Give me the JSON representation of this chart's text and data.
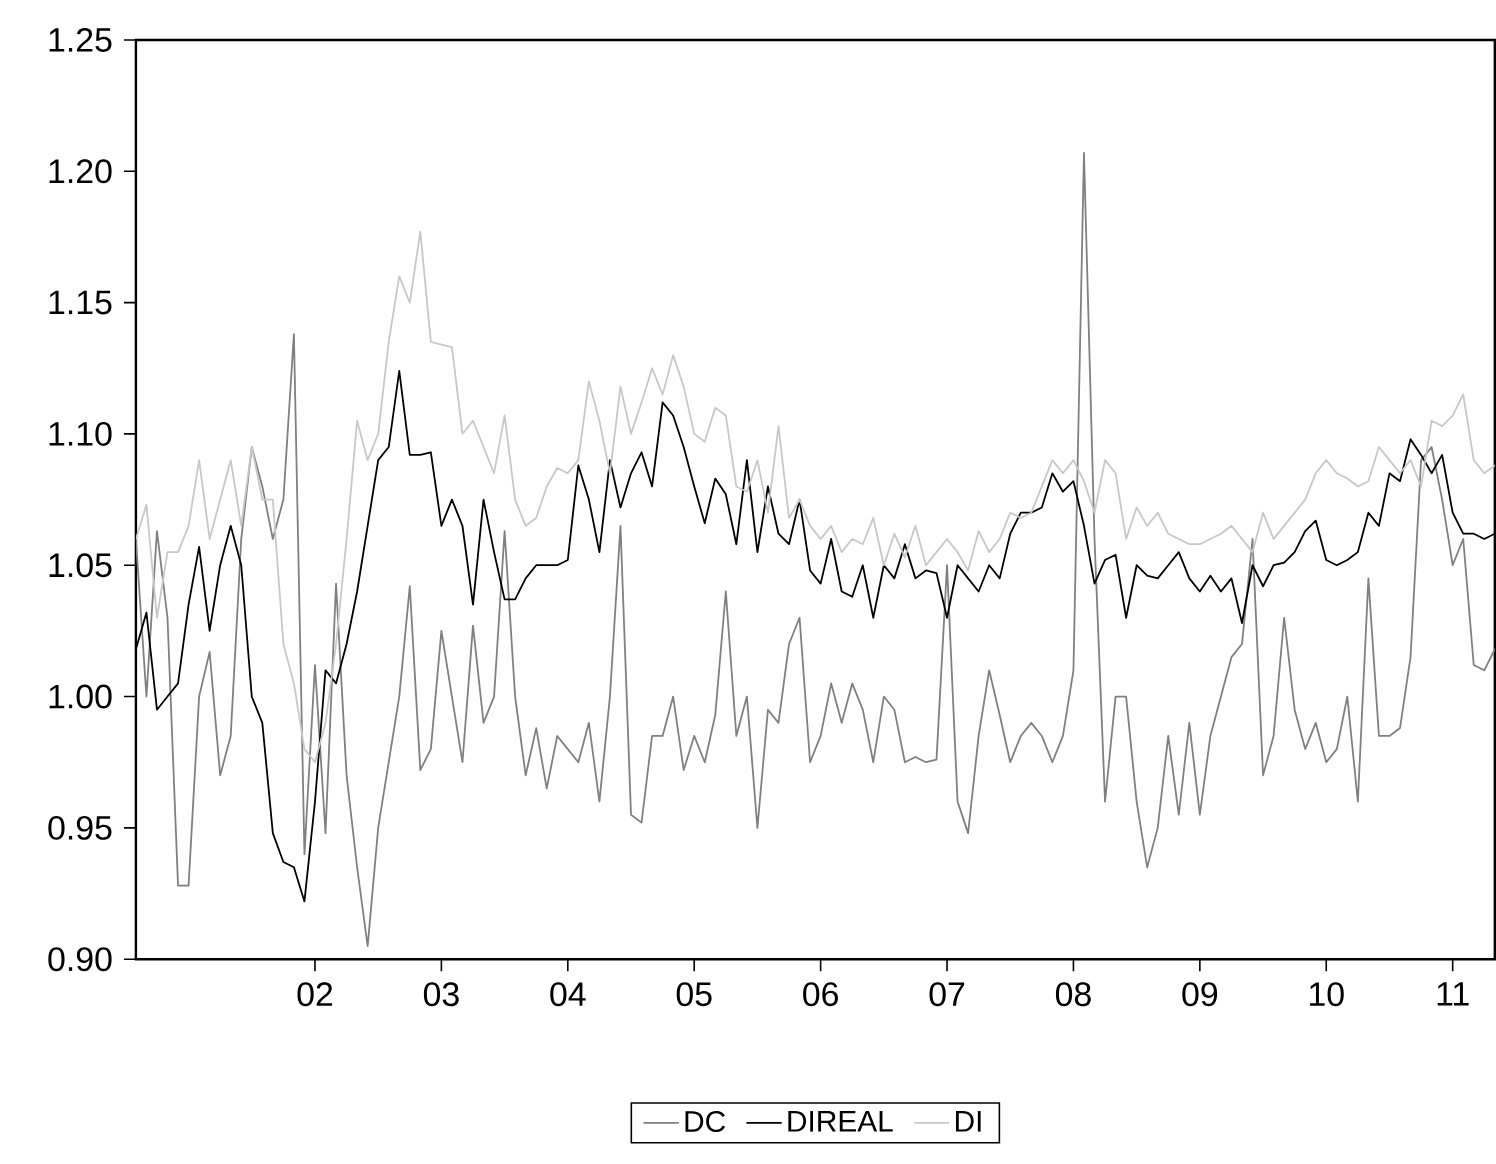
{
  "chart_data": {
    "type": "line",
    "x": [
      "2001-02",
      "2001-03",
      "2001-04",
      "2001-05",
      "2001-06",
      "2001-07",
      "2001-08",
      "2001-09",
      "2001-10",
      "2001-11",
      "2001-12",
      "2002-01",
      "2002-02",
      "2002-03",
      "2002-04",
      "2002-05",
      "2002-06",
      "2002-07",
      "2002-08",
      "2002-09",
      "2002-10",
      "2002-11",
      "2002-12",
      "2003-01",
      "2003-02",
      "2003-03",
      "2003-04",
      "2003-05",
      "2003-06",
      "2003-07",
      "2003-08",
      "2003-09",
      "2003-10",
      "2003-11",
      "2003-12",
      "2004-01",
      "2004-02",
      "2004-03",
      "2004-04",
      "2004-05",
      "2004-06",
      "2004-07",
      "2004-08",
      "2004-09",
      "2004-10",
      "2004-11",
      "2004-12",
      "2005-01",
      "2005-02",
      "2005-03",
      "2005-04",
      "2005-05",
      "2005-06",
      "2005-07",
      "2005-08",
      "2005-09",
      "2005-10",
      "2005-11",
      "2005-12",
      "2006-01",
      "2006-02",
      "2006-03",
      "2006-04",
      "2006-05",
      "2006-06",
      "2006-07",
      "2006-08",
      "2006-09",
      "2006-10",
      "2006-11",
      "2006-12",
      "2007-01",
      "2007-02",
      "2007-03",
      "2007-04",
      "2007-05",
      "2007-06",
      "2007-07",
      "2007-08",
      "2007-09",
      "2007-10",
      "2007-11",
      "2007-12",
      "2008-01",
      "2008-02",
      "2008-03",
      "2008-04",
      "2008-05",
      "2008-06",
      "2008-07",
      "2008-08",
      "2008-09",
      "2008-10",
      "2008-11",
      "2008-12",
      "2009-01",
      "2009-02",
      "2009-03",
      "2009-04",
      "2009-05",
      "2009-06",
      "2009-07",
      "2009-08",
      "2009-09",
      "2009-10",
      "2009-11",
      "2009-12",
      "2010-01",
      "2010-02",
      "2010-03",
      "2010-04",
      "2010-05",
      "2010-06",
      "2010-07",
      "2010-08",
      "2010-09",
      "2010-10",
      "2010-11",
      "2010-12",
      "2011-01",
      "2011-02",
      "2011-03",
      "2011-04",
      "2011-05",
      "2011-06",
      "2011-07",
      "2011-08",
      "2011-09",
      "2011-10",
      "2011-11"
    ],
    "series": [
      {
        "name": "DC",
        "color": "#808080",
        "values": [
          1.06,
          1.0,
          1.063,
          1.03,
          0.928,
          0.928,
          1.0,
          1.017,
          0.97,
          0.985,
          1.06,
          1.095,
          1.08,
          1.06,
          1.075,
          1.138,
          0.94,
          1.012,
          0.948,
          1.043,
          0.97,
          0.935,
          0.905,
          0.95,
          0.975,
          1.0,
          1.042,
          0.972,
          0.98,
          1.025,
          1.0,
          0.975,
          1.027,
          0.99,
          1.0,
          1.063,
          1.0,
          0.97,
          0.988,
          0.965,
          0.985,
          0.98,
          0.975,
          0.99,
          0.96,
          1.0,
          1.065,
          0.955,
          0.952,
          0.985,
          0.985,
          1.0,
          0.972,
          0.985,
          0.975,
          0.993,
          1.04,
          0.985,
          1.0,
          0.95,
          0.995,
          0.99,
          1.02,
          1.03,
          0.975,
          0.985,
          1.005,
          0.99,
          1.005,
          0.995,
          0.975,
          1.0,
          0.995,
          0.975,
          0.977,
          0.975,
          0.976,
          1.05,
          0.96,
          0.948,
          0.985,
          1.01,
          0.993,
          0.975,
          0.985,
          0.99,
          0.985,
          0.975,
          0.985,
          1.01,
          1.207,
          1.06,
          0.96,
          1.0,
          1.0,
          0.96,
          0.935,
          0.95,
          0.985,
          0.955,
          0.99,
          0.955,
          0.985,
          1.0,
          1.015,
          1.02,
          1.06,
          0.97,
          0.985,
          1.03,
          0.995,
          0.98,
          0.99,
          0.975,
          0.98,
          1.0,
          0.96,
          1.045,
          0.985,
          0.985,
          0.988,
          1.015,
          1.09,
          1.095,
          1.075,
          1.05,
          1.06,
          1.012,
          1.01,
          1.018
        ]
      },
      {
        "name": "DIREAL",
        "color": "#000000",
        "values": [
          1.018,
          1.032,
          0.995,
          1.0,
          1.005,
          1.035,
          1.057,
          1.025,
          1.05,
          1.065,
          1.05,
          1.0,
          0.99,
          0.948,
          0.937,
          0.935,
          0.922,
          0.96,
          1.01,
          1.005,
          1.02,
          1.04,
          1.065,
          1.09,
          1.095,
          1.124,
          1.092,
          1.092,
          1.093,
          1.065,
          1.075,
          1.065,
          1.035,
          1.075,
          1.055,
          1.037,
          1.037,
          1.045,
          1.05,
          1.05,
          1.05,
          1.052,
          1.088,
          1.075,
          1.055,
          1.09,
          1.072,
          1.085,
          1.093,
          1.08,
          1.112,
          1.107,
          1.095,
          1.08,
          1.066,
          1.083,
          1.077,
          1.058,
          1.09,
          1.055,
          1.08,
          1.062,
          1.058,
          1.075,
          1.048,
          1.043,
          1.06,
          1.04,
          1.038,
          1.05,
          1.03,
          1.05,
          1.045,
          1.058,
          1.045,
          1.048,
          1.047,
          1.03,
          1.05,
          1.045,
          1.04,
          1.05,
          1.045,
          1.062,
          1.07,
          1.07,
          1.072,
          1.085,
          1.078,
          1.082,
          1.065,
          1.043,
          1.052,
          1.054,
          1.03,
          1.05,
          1.046,
          1.045,
          1.05,
          1.055,
          1.045,
          1.04,
          1.046,
          1.04,
          1.045,
          1.028,
          1.05,
          1.042,
          1.05,
          1.051,
          1.055,
          1.063,
          1.067,
          1.052,
          1.05,
          1.052,
          1.055,
          1.07,
          1.065,
          1.085,
          1.082,
          1.098,
          1.092,
          1.085,
          1.092,
          1.07,
          1.062,
          1.062,
          1.06,
          1.062
        ]
      },
      {
        "name": "DI",
        "color": "#c8c8c8",
        "values": [
          1.06,
          1.073,
          1.03,
          1.055,
          1.055,
          1.065,
          1.09,
          1.06,
          1.075,
          1.09,
          1.065,
          1.095,
          1.075,
          1.075,
          1.02,
          1.005,
          0.98,
          0.975,
          0.99,
          1.02,
          1.06,
          1.105,
          1.09,
          1.1,
          1.135,
          1.16,
          1.15,
          1.177,
          1.135,
          1.134,
          1.133,
          1.1,
          1.105,
          1.095,
          1.085,
          1.107,
          1.075,
          1.065,
          1.068,
          1.08,
          1.087,
          1.085,
          1.09,
          1.12,
          1.105,
          1.085,
          1.118,
          1.1,
          1.112,
          1.125,
          1.115,
          1.13,
          1.118,
          1.1,
          1.097,
          1.11,
          1.107,
          1.08,
          1.078,
          1.09,
          1.07,
          1.103,
          1.068,
          1.075,
          1.065,
          1.06,
          1.065,
          1.055,
          1.06,
          1.058,
          1.068,
          1.05,
          1.062,
          1.053,
          1.065,
          1.05,
          1.055,
          1.06,
          1.055,
          1.048,
          1.063,
          1.055,
          1.06,
          1.07,
          1.068,
          1.07,
          1.08,
          1.09,
          1.085,
          1.09,
          1.082,
          1.07,
          1.09,
          1.085,
          1.06,
          1.072,
          1.065,
          1.07,
          1.062,
          1.06,
          1.058,
          1.058,
          1.06,
          1.062,
          1.065,
          1.06,
          1.055,
          1.07,
          1.06,
          1.065,
          1.07,
          1.075,
          1.085,
          1.09,
          1.085,
          1.083,
          1.08,
          1.082,
          1.095,
          1.09,
          1.085,
          1.09,
          1.08,
          1.105,
          1.103,
          1.107,
          1.115,
          1.09,
          1.085,
          1.088
        ]
      }
    ],
    "xlim": [
      "2001-02",
      "2011-11"
    ],
    "xticks": [
      {
        "value": "2002-07",
        "label": "02"
      },
      {
        "value": "2003-07",
        "label": "03"
      },
      {
        "value": "2004-07",
        "label": "04"
      },
      {
        "value": "2005-07",
        "label": "05"
      },
      {
        "value": "2006-07",
        "label": "06"
      },
      {
        "value": "2007-07",
        "label": "07"
      },
      {
        "value": "2008-07",
        "label": "08"
      },
      {
        "value": "2009-07",
        "label": "09"
      },
      {
        "value": "2010-07",
        "label": "10"
      },
      {
        "value": "2011-07",
        "label": "11"
      }
    ],
    "ylim": [
      0.9,
      1.25
    ],
    "yticks": [
      {
        "value": 0.9,
        "label": "0.90"
      },
      {
        "value": 0.95,
        "label": "0.95"
      },
      {
        "value": 1.0,
        "label": "1.00"
      },
      {
        "value": 1.05,
        "label": "1.05"
      },
      {
        "value": 1.1,
        "label": "1.10"
      },
      {
        "value": 1.15,
        "label": "1.15"
      },
      {
        "value": 1.2,
        "label": "1.20"
      },
      {
        "value": 1.25,
        "label": "1.25"
      }
    ],
    "grid": false,
    "legend": "bottom",
    "marker": "none",
    "line_style": "solid"
  }
}
